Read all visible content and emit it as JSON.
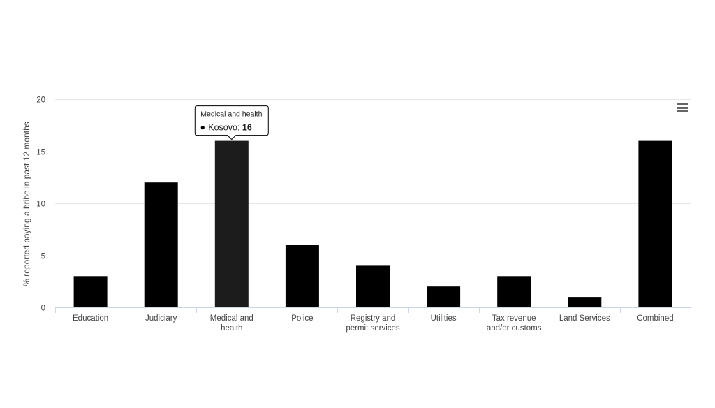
{
  "chart_data": {
    "type": "bar",
    "categories": [
      "Education",
      "Judiciary",
      "Medical and health",
      "Police",
      "Registry and permit services",
      "Utilities",
      "Tax revenue and/or customs",
      "Land Services",
      "Combined"
    ],
    "category_lines": [
      [
        "Education"
      ],
      [
        "Judiciary"
      ],
      [
        "Medical and",
        "health"
      ],
      [
        "Police"
      ],
      [
        "Registry and",
        "permit services"
      ],
      [
        "Utilities"
      ],
      [
        "Tax revenue",
        "and/or customs"
      ],
      [
        "Land Services"
      ],
      [
        "Combined"
      ]
    ],
    "series": [
      {
        "name": "Kosovo",
        "values": [
          3,
          12,
          16,
          6,
          4,
          2,
          3,
          1,
          16
        ]
      }
    ],
    "ylabel": "% reported paying a bribe in past 12 months",
    "ylim": [
      0,
      20
    ],
    "yticks": [
      0,
      5,
      10,
      15,
      20
    ],
    "grid": true,
    "bar_color": "#000000",
    "highlight_color": "#1c1c1c",
    "tooltip": {
      "category": "Medical and health",
      "series": "Kosovo",
      "value": 16,
      "visible_index": 2
    }
  }
}
